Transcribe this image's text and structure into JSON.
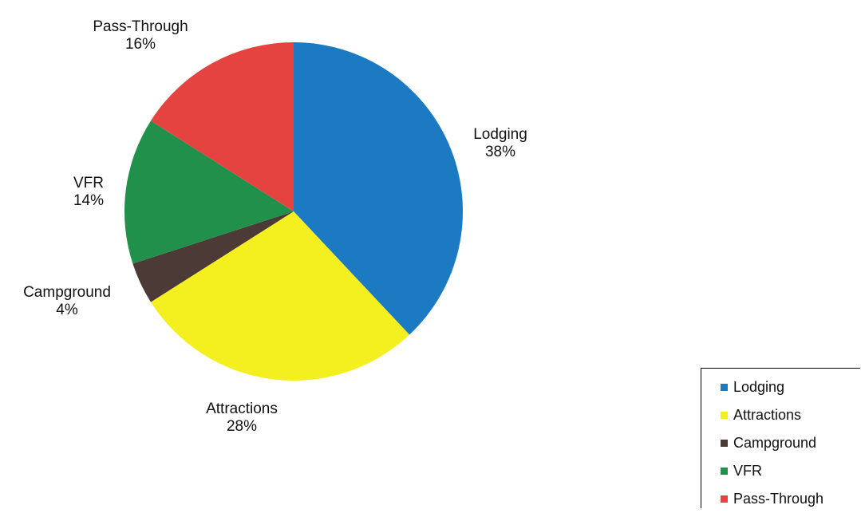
{
  "chart_data": {
    "type": "pie",
    "title": "",
    "slices": [
      {
        "label": "Lodging",
        "value": 38,
        "value_label": "38%",
        "color": "#1b7ac1"
      },
      {
        "label": "Attractions",
        "value": 28,
        "value_label": "28%",
        "color": "#f4ef1f"
      },
      {
        "label": "Campground",
        "value": 4,
        "value_label": "4%",
        "color": "#4c3a36"
      },
      {
        "label": "VFR",
        "value": 14,
        "value_label": "14%",
        "color": "#21904a"
      },
      {
        "label": "Pass-Through",
        "value": 16,
        "value_label": "16%",
        "color": "#e5433f"
      }
    ],
    "start_angle_deg": 0,
    "direction": "clockwise",
    "legend_position": "bottom-right"
  },
  "legend": {
    "items": [
      {
        "label": "Lodging",
        "color": "#1b7ac1"
      },
      {
        "label": "Attractions",
        "color": "#f4ef1f"
      },
      {
        "label": "Campground",
        "color": "#4c3a36"
      },
      {
        "label": "VFR",
        "color": "#21904a"
      },
      {
        "label": "Pass-Through",
        "color": "#e5433f"
      }
    ]
  }
}
